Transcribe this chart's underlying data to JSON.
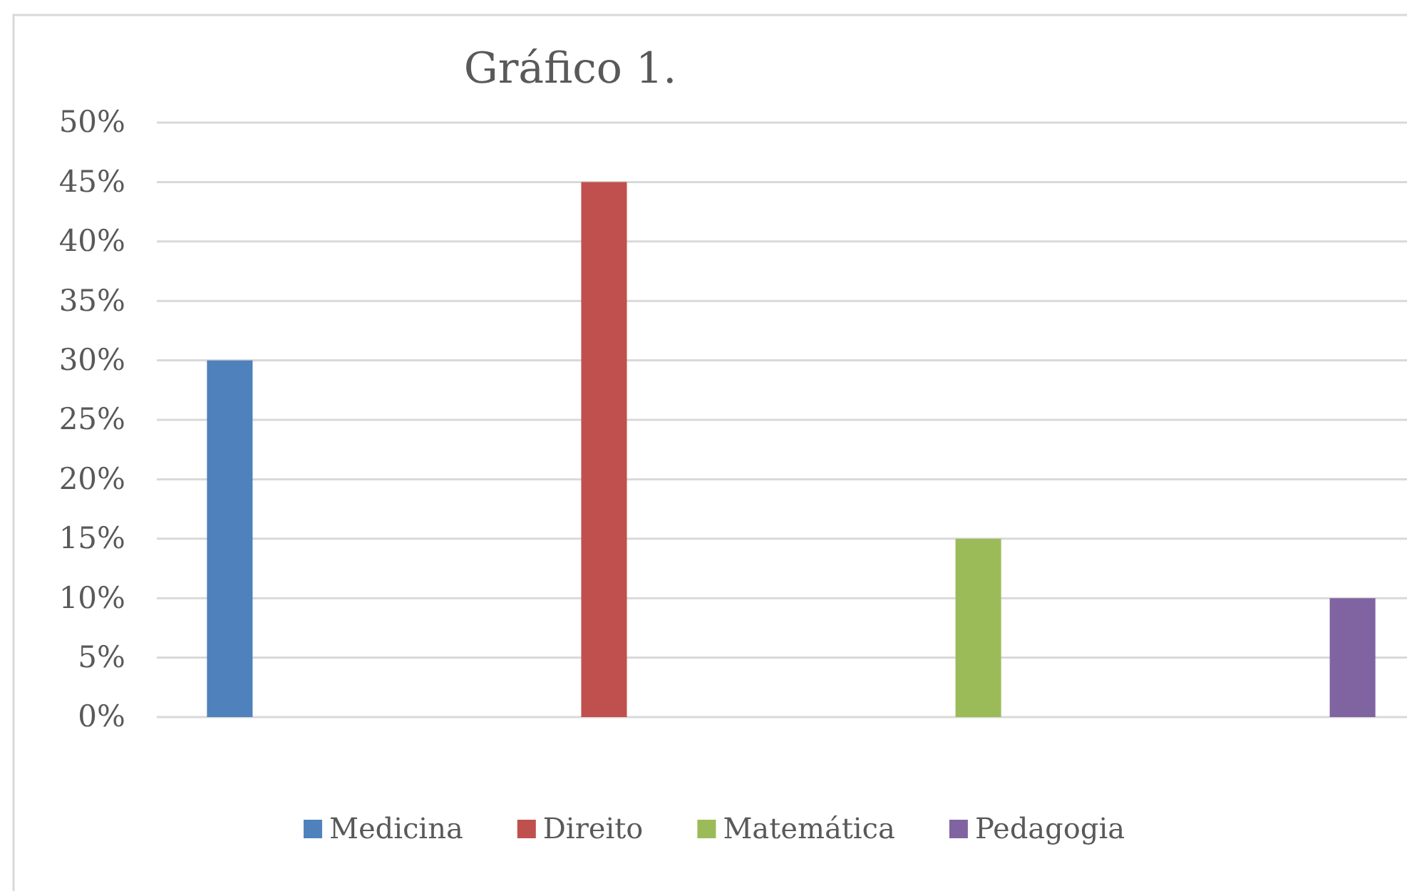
{
  "chart_data": {
    "type": "bar",
    "title": "Gráfico 1.",
    "categories": [
      null
    ],
    "series": [
      {
        "name": "Medicina",
        "color": "#4f81bd",
        "values": [
          30
        ]
      },
      {
        "name": "Direito",
        "color": "#c0504d",
        "values": [
          45
        ]
      },
      {
        "name": "Matemática",
        "color": "#9bbb59",
        "values": [
          15
        ]
      },
      {
        "name": "Pedagogia",
        "color": "#8064a2",
        "values": [
          10
        ]
      }
    ],
    "ylim": [
      0,
      50
    ],
    "yticks": [
      {
        "value": 0,
        "label": "0%"
      },
      {
        "value": 5,
        "label": "5%"
      },
      {
        "value": 10,
        "label": "10%"
      },
      {
        "value": 15,
        "label": "15%"
      },
      {
        "value": 20,
        "label": "20%"
      },
      {
        "value": 25,
        "label": "25%"
      },
      {
        "value": 30,
        "label": "30%"
      },
      {
        "value": 35,
        "label": "35%"
      },
      {
        "value": 40,
        "label": "40%"
      },
      {
        "value": 45,
        "label": "45%"
      },
      {
        "value": 50,
        "label": "50%"
      }
    ],
    "grid": "y",
    "legend": "bottom",
    "tick_labels": "y"
  }
}
